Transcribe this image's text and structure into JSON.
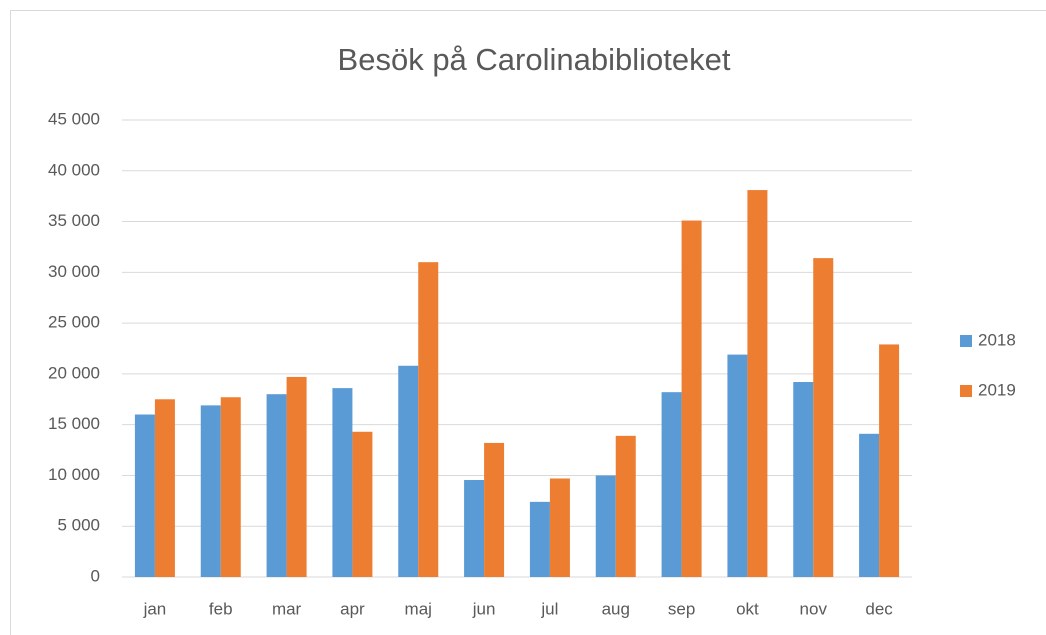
{
  "chart_data": {
    "type": "bar",
    "title": "Besök på Carolinabiblioteket",
    "categories": [
      "jan",
      "feb",
      "mar",
      "apr",
      "maj",
      "jun",
      "jul",
      "aug",
      "sep",
      "okt",
      "nov",
      "dec"
    ],
    "series": [
      {
        "name": "2018",
        "color": "#5b9bd5",
        "values": [
          16000,
          16900,
          18000,
          18600,
          20800,
          9550,
          7400,
          10000,
          18200,
          21900,
          19200,
          14100
        ]
      },
      {
        "name": "2019",
        "color": "#ed7d31",
        "values": [
          17500,
          17700,
          19700,
          14300,
          31000,
          13200,
          9700,
          13900,
          35100,
          38100,
          31400,
          22900
        ]
      }
    ],
    "ylim": [
      0,
      45000
    ],
    "yticks": [
      0,
      {
        "value": 5000,
        "label": "5 000"
      },
      {
        "value": 10000,
        "label": "10 000"
      },
      {
        "value": 15000,
        "label": "15 000"
      },
      {
        "value": 20000,
        "label": "20 000"
      },
      {
        "value": 25000,
        "label": "25 000"
      },
      {
        "value": 30000,
        "label": "30 000"
      },
      {
        "value": 35000,
        "label": "35 000"
      },
      {
        "value": 40000,
        "label": "40 000"
      },
      {
        "value": 45000,
        "label": "45 000"
      }
    ],
    "grid": true,
    "legend": "right"
  }
}
